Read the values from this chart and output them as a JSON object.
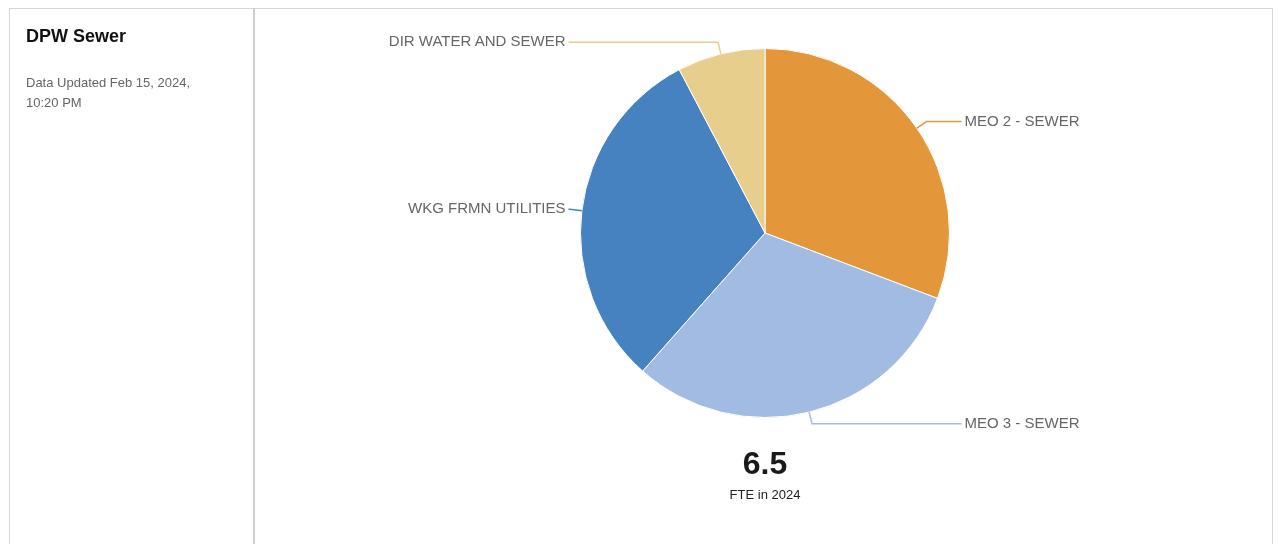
{
  "chart_data": {
    "type": "pie",
    "title": "DPW Sewer",
    "subtitle": "Data Updated Feb 15, 2024, 10:20 PM",
    "categories": [
      "MEO 2 - SEWER",
      "MEO 3 - SEWER",
      "WKG FRMN UTILITIES",
      "DIR WATER AND SEWER"
    ],
    "values": [
      30.77,
      30.77,
      30.77,
      7.69
    ],
    "colors": [
      "#e3963a",
      "#a2bbe3",
      "#4682c0",
      "#e8ce8c"
    ],
    "annotations": [
      "6.5",
      "FTE in 2024"
    ]
  }
}
